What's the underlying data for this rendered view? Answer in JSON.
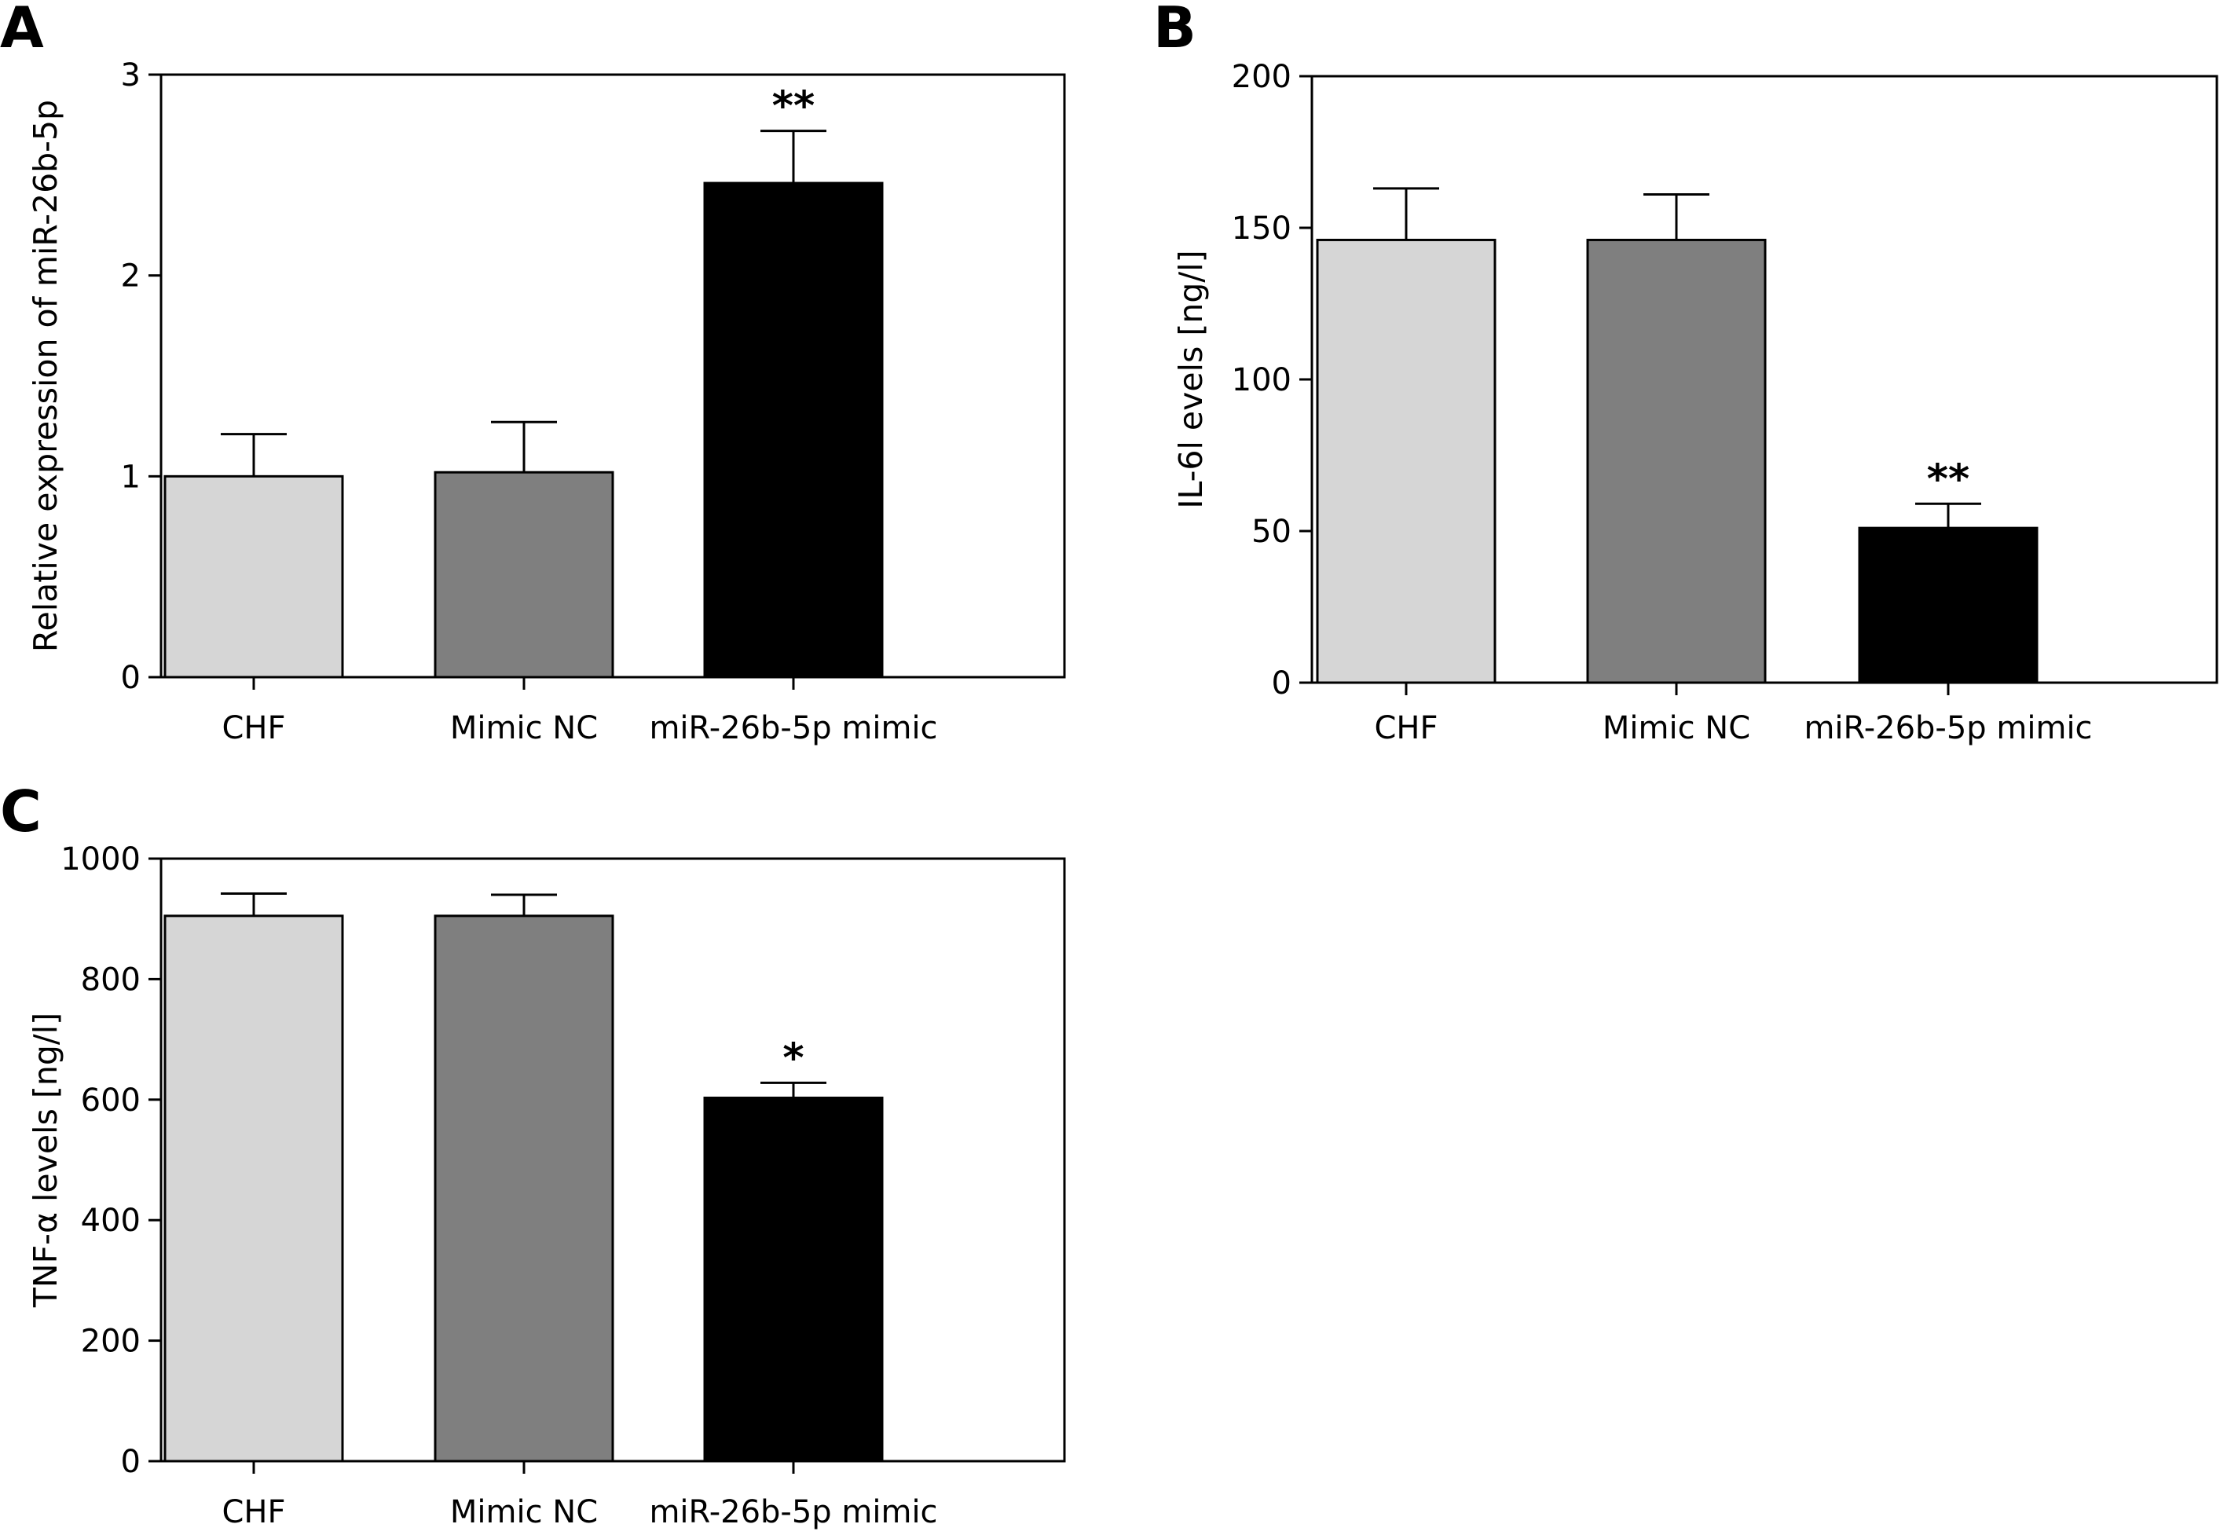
{
  "colors": {
    "CHF": "#d6d6d6",
    "Mimic NC": "#7f7f7f",
    "miR-26b-5p mimic": "#000000"
  },
  "chart_data": [
    {
      "panel": "A",
      "type": "bar",
      "categories": [
        "CHF",
        "Mimic NC",
        "miR-26b-5p mimic"
      ],
      "values": [
        1.0,
        1.02,
        2.46
      ],
      "errors": [
        0.21,
        0.25,
        0.26
      ],
      "significance": [
        "",
        "",
        "**"
      ],
      "ylabel": "Relative expression of miR-26b-5p",
      "ylim": [
        0,
        3
      ],
      "yticks": [
        0,
        1,
        2,
        3
      ]
    },
    {
      "panel": "B",
      "type": "bar",
      "categories": [
        "CHF",
        "Mimic NC",
        "miR-26b-5p mimic"
      ],
      "values": [
        146,
        146,
        51
      ],
      "errors": [
        17,
        15,
        8
      ],
      "significance": [
        "",
        "",
        "**"
      ],
      "ylabel": "IL-6l evels [ng/l]",
      "ylim": [
        0,
        200
      ],
      "yticks": [
        0,
        50,
        100,
        150,
        200
      ]
    },
    {
      "panel": "C",
      "type": "bar",
      "categories": [
        "CHF",
        "Mimic NC",
        "miR-26b-5p mimic"
      ],
      "values": [
        905,
        905,
        603
      ],
      "errors": [
        37,
        35,
        25
      ],
      "significance": [
        "",
        "",
        "*"
      ],
      "ylabel": "TNF-α levels [ng/l]",
      "ylim": [
        0,
        1000
      ],
      "yticks": [
        0,
        200,
        400,
        600,
        800,
        1000
      ]
    }
  ]
}
